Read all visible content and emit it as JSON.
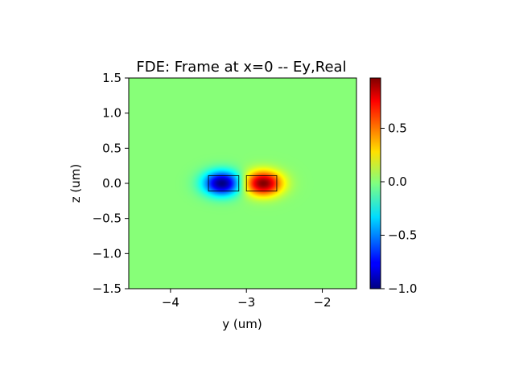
{
  "chart_data": {
    "type": "heatmap",
    "title": "FDE: Frame at x=0 -- Ey,Real",
    "xlabel": "y (um)",
    "ylabel": "z (um)",
    "xlim": [
      -4.55,
      -1.55
    ],
    "ylim": [
      -1.5,
      1.5
    ],
    "x_ticks": [
      -4,
      -3,
      -2
    ],
    "x_tick_labels": [
      "−4",
      "−3",
      "−2"
    ],
    "y_ticks": [
      1.5,
      1.0,
      0.5,
      0.0,
      -0.5,
      -1.0,
      -1.5
    ],
    "y_tick_labels": [
      "1.5",
      "1.0",
      "0.5",
      "0.0",
      "−0.5",
      "−1.0",
      "−1.5"
    ],
    "colormap": "jet",
    "colorbar": {
      "range": [
        -1.0,
        0.97
      ],
      "ticks": [
        0.5,
        0.0,
        -0.5,
        -1.0
      ],
      "tick_labels": [
        "0.5",
        "0.0",
        "−0.5",
        "−1.0"
      ]
    },
    "field_lobes": [
      {
        "y_center": -3.32,
        "z_center": 0.0,
        "peak": -1.0
      },
      {
        "y_center": -2.78,
        "z_center": 0.0,
        "peak": 0.97
      }
    ],
    "waveguides": [
      {
        "y_range": [
          -3.5,
          -3.1
        ],
        "z_range": [
          -0.11,
          0.11
        ]
      },
      {
        "y_range": [
          -3.0,
          -2.6
        ],
        "z_range": [
          -0.11,
          0.11
        ]
      }
    ]
  }
}
